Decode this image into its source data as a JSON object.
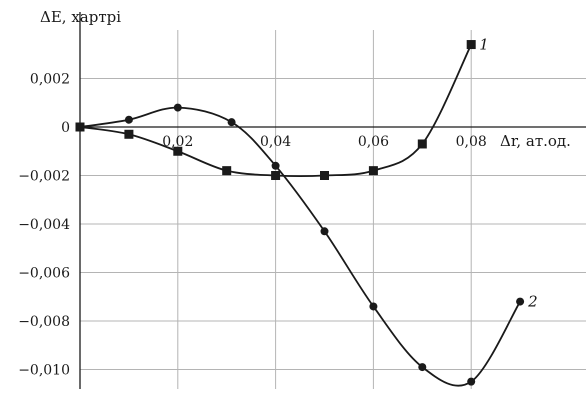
{
  "chart_data": {
    "type": "line",
    "ylabel": "ΔE, хартрі",
    "xlabel": "Δr, ат.од.",
    "xlim": [
      0,
      0.1
    ],
    "ylim": [
      -0.0105,
      0.004
    ],
    "grid": true,
    "x_ticks": [
      {
        "value": 0.02,
        "label": "0,02"
      },
      {
        "value": 0.04,
        "label": "0,04"
      },
      {
        "value": 0.06,
        "label": "0,06"
      },
      {
        "value": 0.08,
        "label": "0,08"
      }
    ],
    "y_ticks": [
      {
        "value": 0.002,
        "label": "0,002"
      },
      {
        "value": 0,
        "label": "0"
      },
      {
        "value": -0.002,
        "label": "−0,002"
      },
      {
        "value": -0.004,
        "label": "−0,004"
      },
      {
        "value": -0.006,
        "label": "−0,006"
      },
      {
        "value": -0.008,
        "label": "−0,008"
      },
      {
        "value": -0.01,
        "label": "−0,010"
      }
    ],
    "series": [
      {
        "name": "1",
        "marker": "square",
        "x": [
          0,
          0.01,
          0.02,
          0.03,
          0.04,
          0.05,
          0.06,
          0.07,
          0.08
        ],
        "y": [
          0,
          -0.0003,
          -0.001,
          -0.0018,
          -0.002,
          -0.002,
          -0.0018,
          -0.0007,
          0.0034
        ]
      },
      {
        "name": "2",
        "marker": "circle",
        "x": [
          0,
          0.01,
          0.02,
          0.031,
          0.04,
          0.05,
          0.06,
          0.07,
          0.08,
          0.09
        ],
        "y": [
          0,
          0.0003,
          0.0008,
          0.0002,
          -0.0016,
          -0.0043,
          -0.0074,
          -0.0099,
          -0.0105,
          -0.0072
        ]
      }
    ]
  },
  "colors": {
    "line": "#1a1a1a",
    "grid": "#b4b4b4",
    "background": "#ffffff"
  }
}
